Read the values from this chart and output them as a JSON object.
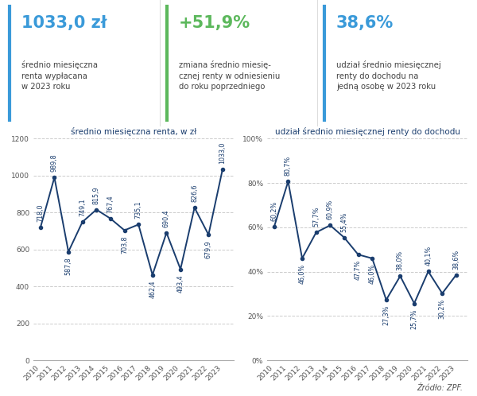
{
  "years": [
    2010,
    2011,
    2012,
    2013,
    2014,
    2015,
    2016,
    2017,
    2018,
    2019,
    2020,
    2021,
    2022,
    2023
  ],
  "renta": [
    718.0,
    989.8,
    587.8,
    749.1,
    815.9,
    767.4,
    703.8,
    735.1,
    462.4,
    690.4,
    493.4,
    826.6,
    679.9,
    1033.0
  ],
  "udzial": [
    60.2,
    80.7,
    46.0,
    57.7,
    60.9,
    55.4,
    47.7,
    46.0,
    27.3,
    38.0,
    25.7,
    40.1,
    30.2,
    38.6
  ],
  "stat1_value": "1033,0 zł",
  "stat2_value": "+51,9%",
  "stat3_value": "38,6%",
  "stat1_label": "średnio miesięczna\nrenta wypłacana\nw 2023 roku",
  "stat2_label": "zmiana średnio miesię-\ncznej renty w odniesieniu\ndo roku poprzedniego",
  "stat3_label": "udział średnio miesięcznej\nrenty do dochodu na\njedną osobę w 2023 roku",
  "chart1_title": "średnio miesięczna renta, w zł",
  "chart2_title": "udział średnio miesięcznej renty do dochodu",
  "line_color": "#1a3d6e",
  "label_color": "#1a3d6e",
  "grid_color": "#cccccc",
  "background_color": "#ffffff",
  "stat1_color": "#3a9ad9",
  "stat2_color": "#5cb85c",
  "stat3_color": "#3a9ad9",
  "source_text": "Źródło: ZPF.",
  "ylim1": [
    0,
    1200
  ],
  "ylim2": [
    0,
    100
  ],
  "yticks1": [
    0,
    200,
    400,
    600,
    800,
    1000,
    1200
  ],
  "yticks2": [
    0,
    20,
    40,
    60,
    80,
    100
  ],
  "renta_label_above": [
    true,
    true,
    false,
    true,
    true,
    true,
    false,
    true,
    false,
    true,
    false,
    true,
    false,
    true
  ],
  "udzial_label_above": [
    true,
    true,
    false,
    true,
    true,
    true,
    false,
    false,
    false,
    true,
    false,
    true,
    false,
    true
  ]
}
